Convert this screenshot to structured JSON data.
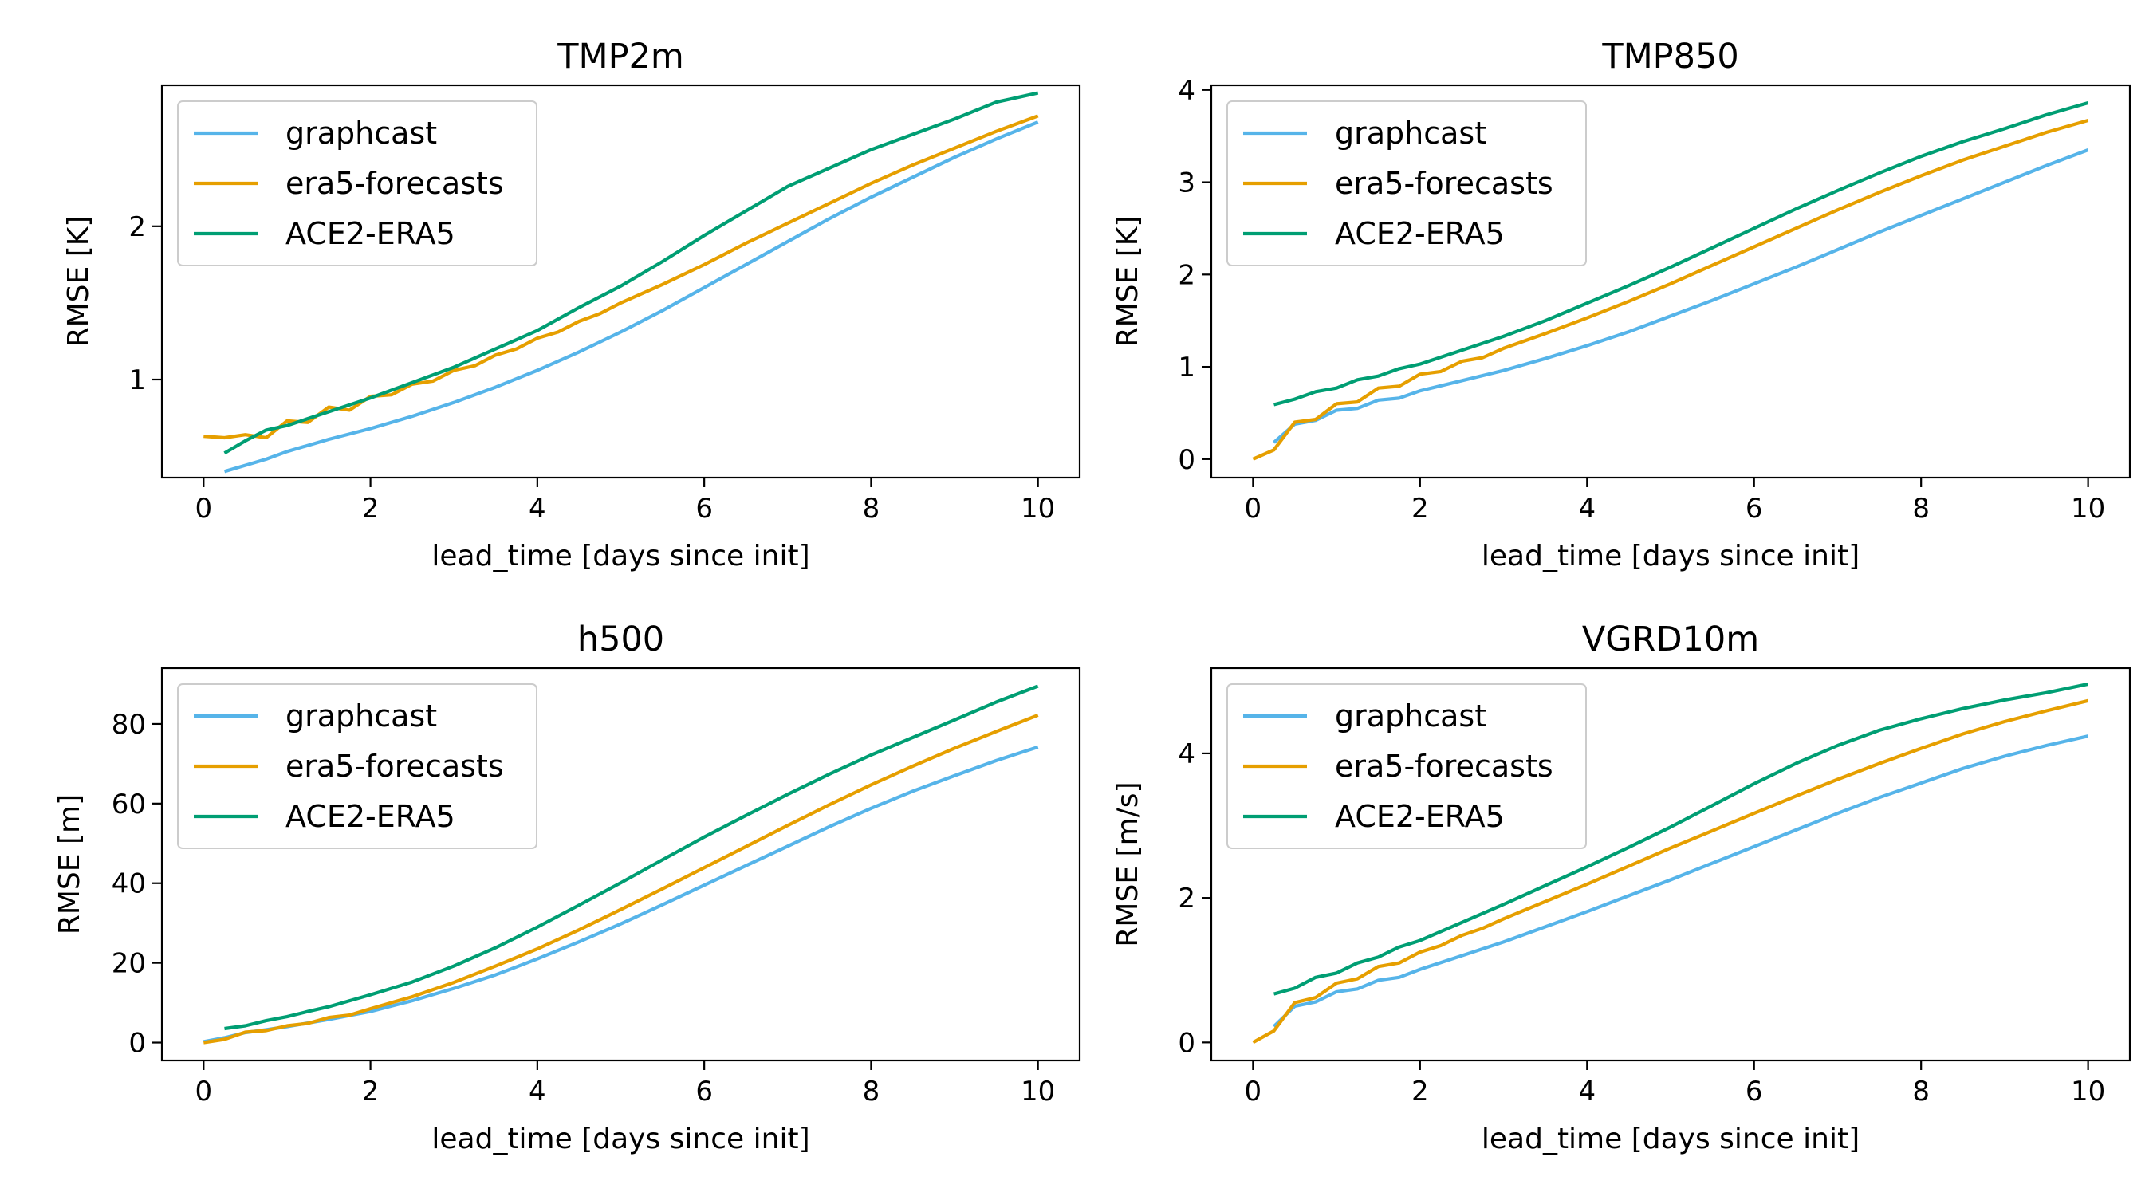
{
  "colors": {
    "graphcast": "#56B4E9",
    "era5-forecasts": "#E69F00",
    "ACE2-ERA5": "#009E73",
    "axes": "#000000",
    "legend_edge": "#cccccc"
  },
  "chart_data": [
    {
      "type": "line",
      "title": "TMP2m",
      "xlabel": "lead_time [days since init]",
      "ylabel": "RMSE [K]",
      "xlim": [
        -0.5,
        10.5
      ],
      "ylim": [
        0.36,
        2.92
      ],
      "xticks": [
        0,
        2,
        4,
        6,
        8,
        10
      ],
      "yticks": [
        1,
        2
      ],
      "grid": false,
      "legend": "upper left",
      "series": [
        {
          "name": "graphcast",
          "x": [
            0.25,
            0.5,
            0.75,
            1,
            1.5,
            2,
            2.5,
            3,
            3.5,
            4,
            4.5,
            5,
            5.5,
            6,
            6.5,
            7,
            7.5,
            8,
            8.5,
            9,
            9.5,
            10
          ],
          "y": [
            0.4,
            0.44,
            0.48,
            0.53,
            0.61,
            0.68,
            0.76,
            0.85,
            0.95,
            1.06,
            1.18,
            1.31,
            1.45,
            1.6,
            1.75,
            1.9,
            2.05,
            2.19,
            2.32,
            2.45,
            2.57,
            2.68
          ]
        },
        {
          "name": "era5-forecasts",
          "x": [
            0,
            0.25,
            0.5,
            0.75,
            1,
            1.25,
            1.5,
            1.75,
            2,
            2.25,
            2.5,
            2.75,
            3,
            3.25,
            3.5,
            3.75,
            4,
            4.25,
            4.5,
            4.75,
            5,
            5.5,
            6,
            6.5,
            7,
            7.5,
            8,
            8.5,
            9,
            9.5,
            10
          ],
          "y": [
            0.63,
            0.62,
            0.64,
            0.62,
            0.73,
            0.72,
            0.82,
            0.8,
            0.89,
            0.9,
            0.97,
            0.99,
            1.06,
            1.09,
            1.16,
            1.2,
            1.27,
            1.31,
            1.38,
            1.43,
            1.5,
            1.62,
            1.75,
            1.89,
            2.02,
            2.15,
            2.28,
            2.4,
            2.51,
            2.62,
            2.72
          ]
        },
        {
          "name": "ACE2-ERA5",
          "x": [
            0.25,
            0.5,
            0.75,
            1,
            1.5,
            2,
            2.5,
            3,
            3.5,
            4,
            4.5,
            5,
            5.5,
            6,
            6.5,
            7,
            7.5,
            8,
            8.5,
            9,
            9.5,
            10
          ],
          "y": [
            0.52,
            0.6,
            0.67,
            0.7,
            0.79,
            0.88,
            0.98,
            1.08,
            1.2,
            1.32,
            1.47,
            1.61,
            1.77,
            1.94,
            2.1,
            2.26,
            2.38,
            2.5,
            2.6,
            2.7,
            2.81,
            2.87
          ]
        }
      ]
    },
    {
      "type": "line",
      "title": "TMP850",
      "xlabel": "lead_time [days since init]",
      "ylabel": "RMSE [K]",
      "xlim": [
        -0.5,
        10.5
      ],
      "ylim": [
        -0.2,
        4.05
      ],
      "xticks": [
        0,
        2,
        4,
        6,
        8,
        10
      ],
      "yticks": [
        0,
        1,
        2,
        3,
        4
      ],
      "grid": false,
      "legend": "upper left",
      "series": [
        {
          "name": "graphcast",
          "x": [
            0.25,
            0.5,
            0.75,
            1,
            1.25,
            1.5,
            1.75,
            2,
            2.5,
            3,
            3.5,
            4,
            4.5,
            5,
            5.5,
            6,
            6.5,
            7,
            7.5,
            8,
            8.5,
            9,
            9.5,
            10
          ],
          "y": [
            0.18,
            0.38,
            0.42,
            0.53,
            0.55,
            0.64,
            0.66,
            0.74,
            0.85,
            0.96,
            1.09,
            1.23,
            1.38,
            1.55,
            1.72,
            1.9,
            2.08,
            2.27,
            2.46,
            2.64,
            2.82,
            3.0,
            3.18,
            3.35
          ]
        },
        {
          "name": "era5-forecasts",
          "x": [
            0,
            0.25,
            0.5,
            0.75,
            1,
            1.25,
            1.5,
            1.75,
            2,
            2.25,
            2.5,
            2.75,
            3,
            3.5,
            4,
            4.5,
            5,
            5.5,
            6,
            6.5,
            7,
            7.5,
            8,
            8.5,
            9,
            9.5,
            10
          ],
          "y": [
            0.0,
            0.1,
            0.4,
            0.43,
            0.6,
            0.62,
            0.77,
            0.79,
            0.92,
            0.95,
            1.06,
            1.1,
            1.2,
            1.36,
            1.53,
            1.71,
            1.9,
            2.1,
            2.3,
            2.5,
            2.7,
            2.89,
            3.07,
            3.24,
            3.39,
            3.54,
            3.67
          ]
        },
        {
          "name": "ACE2-ERA5",
          "x": [
            0.25,
            0.5,
            0.75,
            1,
            1.25,
            1.5,
            1.75,
            2,
            2.5,
            3,
            3.5,
            4,
            4.5,
            5,
            5.5,
            6,
            6.5,
            7,
            7.5,
            8,
            8.5,
            9,
            9.5,
            10
          ],
          "y": [
            0.59,
            0.65,
            0.73,
            0.77,
            0.86,
            0.9,
            0.98,
            1.03,
            1.18,
            1.33,
            1.5,
            1.69,
            1.88,
            2.08,
            2.29,
            2.5,
            2.71,
            2.91,
            3.1,
            3.28,
            3.44,
            3.58,
            3.73,
            3.86
          ]
        }
      ]
    },
    {
      "type": "line",
      "title": "h500",
      "xlabel": "lead_time [days since init]",
      "ylabel": "RMSE [m]",
      "xlim": [
        -0.5,
        10.5
      ],
      "ylim": [
        -4.5,
        94
      ],
      "xticks": [
        0,
        2,
        4,
        6,
        8,
        10
      ],
      "yticks": [
        0,
        20,
        40,
        60,
        80
      ],
      "grid": false,
      "legend": "upper left",
      "series": [
        {
          "name": "graphcast",
          "x": [
            0,
            0.25,
            0.5,
            0.75,
            1,
            1.5,
            2,
            2.5,
            3,
            3.5,
            4,
            4.5,
            5,
            5.5,
            6,
            6.5,
            7,
            7.5,
            8,
            8.5,
            9,
            9.5,
            10
          ],
          "y": [
            0.2,
            1.2,
            2.5,
            3.2,
            4.0,
            5.8,
            7.8,
            10.5,
            13.6,
            17.0,
            21.0,
            25.3,
            29.8,
            34.6,
            39.5,
            44.4,
            49.3,
            54.2,
            58.8,
            63.1,
            67.0,
            70.8,
            74.2
          ]
        },
        {
          "name": "era5-forecasts",
          "x": [
            0,
            0.25,
            0.5,
            0.75,
            1,
            1.25,
            1.5,
            1.75,
            2,
            2.5,
            3,
            3.5,
            4,
            4.5,
            5,
            5.5,
            6,
            6.5,
            7,
            7.5,
            8,
            8.5,
            9,
            9.5,
            10
          ],
          "y": [
            0.0,
            0.8,
            2.6,
            3.0,
            4.2,
            4.8,
            6.3,
            6.9,
            8.5,
            11.5,
            15.1,
            19.2,
            23.5,
            28.3,
            33.4,
            38.6,
            43.9,
            49.2,
            54.5,
            59.7,
            64.7,
            69.4,
            73.9,
            78.1,
            82.2
          ]
        },
        {
          "name": "ACE2-ERA5",
          "x": [
            0.25,
            0.5,
            0.75,
            1,
            1.25,
            1.5,
            1.75,
            2,
            2.5,
            3,
            3.5,
            4,
            4.5,
            5,
            5.5,
            6,
            6.5,
            7,
            7.5,
            8,
            8.5,
            9,
            9.5,
            10
          ],
          "y": [
            3.5,
            4.2,
            5.5,
            6.5,
            7.8,
            9.0,
            10.5,
            12.0,
            15.2,
            19.2,
            23.8,
            29.0,
            34.5,
            40.1,
            45.9,
            51.6,
            57.0,
            62.3,
            67.4,
            72.2,
            76.6,
            81.0,
            85.5,
            89.5
          ]
        }
      ]
    },
    {
      "type": "line",
      "title": "VGRD10m",
      "xlabel": "lead_time [days since init]",
      "ylabel": "RMSE [m/s]",
      "xlim": [
        -0.5,
        10.5
      ],
      "ylim": [
        -0.25,
        5.18
      ],
      "xticks": [
        0,
        2,
        4,
        6,
        8,
        10
      ],
      "yticks": [
        0,
        2,
        4
      ],
      "grid": false,
      "legend": "upper left",
      "series": [
        {
          "name": "graphcast",
          "x": [
            0.25,
            0.5,
            0.75,
            1,
            1.25,
            1.5,
            1.75,
            2,
            2.5,
            3,
            3.5,
            4,
            4.5,
            5,
            5.5,
            6,
            6.5,
            7,
            7.5,
            8,
            8.5,
            9,
            9.5,
            10
          ],
          "y": [
            0.22,
            0.5,
            0.56,
            0.7,
            0.74,
            0.86,
            0.9,
            1.01,
            1.2,
            1.39,
            1.6,
            1.81,
            2.03,
            2.25,
            2.48,
            2.71,
            2.94,
            3.17,
            3.39,
            3.59,
            3.79,
            3.96,
            4.11,
            4.24
          ]
        },
        {
          "name": "era5-forecasts",
          "x": [
            0,
            0.25,
            0.5,
            0.75,
            1,
            1.25,
            1.5,
            1.75,
            2,
            2.25,
            2.5,
            2.75,
            3,
            3.5,
            4,
            4.5,
            5,
            5.5,
            6,
            6.5,
            7,
            7.5,
            8,
            8.5,
            9,
            9.5,
            10
          ],
          "y": [
            0.0,
            0.16,
            0.55,
            0.62,
            0.82,
            0.88,
            1.05,
            1.1,
            1.25,
            1.34,
            1.48,
            1.58,
            1.71,
            1.95,
            2.19,
            2.44,
            2.69,
            2.93,
            3.17,
            3.41,
            3.64,
            3.86,
            4.07,
            4.27,
            4.44,
            4.59,
            4.73
          ]
        },
        {
          "name": "ACE2-ERA5",
          "x": [
            0.25,
            0.5,
            0.75,
            1,
            1.25,
            1.5,
            1.75,
            2,
            2.5,
            3,
            3.5,
            4,
            4.5,
            5,
            5.5,
            6,
            6.5,
            7,
            7.5,
            8,
            8.5,
            9,
            9.5,
            10
          ],
          "y": [
            0.67,
            0.75,
            0.9,
            0.96,
            1.1,
            1.18,
            1.32,
            1.41,
            1.66,
            1.91,
            2.17,
            2.43,
            2.7,
            2.98,
            3.28,
            3.58,
            3.86,
            4.11,
            4.32,
            4.48,
            4.62,
            4.74,
            4.84,
            4.96
          ]
        }
      ]
    }
  ]
}
